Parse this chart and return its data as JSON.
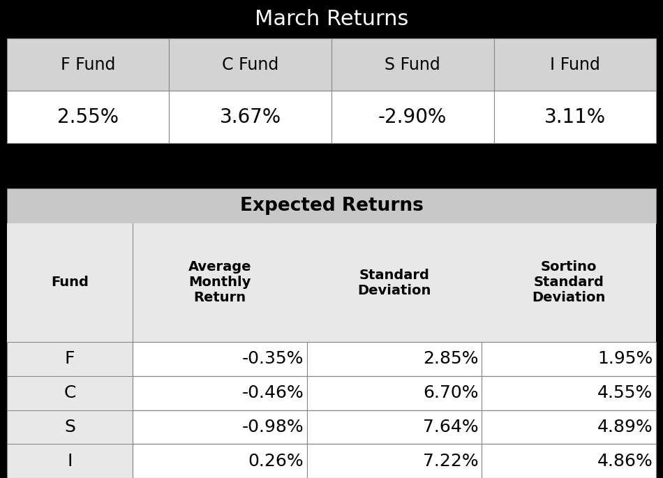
{
  "title1": "March Returns",
  "table1_headers": [
    "F Fund",
    "C Fund",
    "S Fund",
    "I Fund"
  ],
  "table1_values": [
    "2.55%",
    "3.67%",
    "-2.90%",
    "3.11%"
  ],
  "title2": "Expected Returns",
  "table2_col_headers_line1": [
    "",
    "Average",
    "",
    "Sortino"
  ],
  "table2_col_headers_line2": [
    "",
    "Monthly",
    "Standard",
    "Standard"
  ],
  "table2_col_headers_line3": [
    "Fund",
    "Return",
    "Deviation",
    "Deviation"
  ],
  "table2_rows": [
    [
      "F",
      "-0.35%",
      "2.85%",
      "1.95%"
    ],
    [
      "C",
      "-0.46%",
      "6.70%",
      "4.55%"
    ],
    [
      "S",
      "-0.98%",
      "7.64%",
      "4.89%"
    ],
    [
      "I",
      "0.26%",
      "7.22%",
      "4.86%"
    ]
  ],
  "header_bg": "#000000",
  "header_fg": "#ffffff",
  "table1_col_header_bg": "#d3d3d3",
  "table1_cell_bg": "#ffffff",
  "cell_fg": "#000000",
  "black_bar_bg": "#000000",
  "expected_title_bg": "#c8c8c8",
  "expected_col_header_bg": "#e8e8e8",
  "expected_data_fund_bg": "#e8e8e8",
  "expected_data_cell_bg": "#ffffff",
  "border_color": "#888888"
}
